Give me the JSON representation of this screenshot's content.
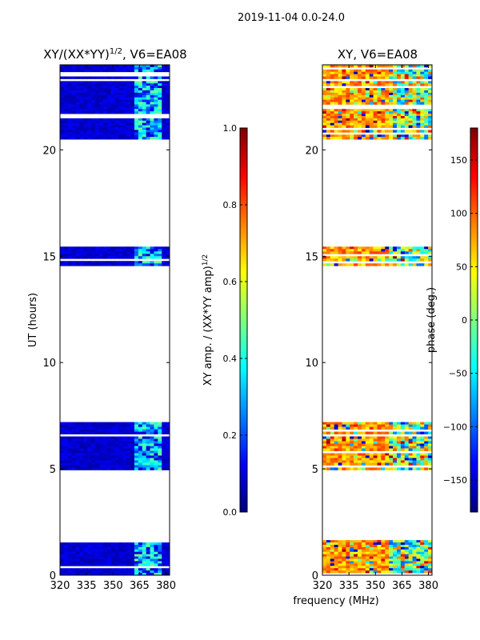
{
  "suptitle": "2019-11-04 0.0-24.0",
  "shared_xlabel": "frequency (MHz)",
  "colors": {
    "jet": [
      "#00007f",
      "#0000ff",
      "#007fff",
      "#00ffff",
      "#7fff7f",
      "#ffff00",
      "#ff7f00",
      "#ff0000",
      "#7f0000"
    ],
    "axis": "#000000",
    "background": "#ffffff"
  },
  "chart_data": [
    {
      "type": "heatmap",
      "title": "XY/(XX*YY)",
      "title_superscript": "1/2",
      "title_suffix": ", V6=EA08",
      "xlabel": "",
      "ylabel": "UT (hours)",
      "xlim": [
        320,
        382
      ],
      "ylim": [
        0,
        24
      ],
      "xticks": [
        320,
        335,
        350,
        365,
        380
      ],
      "yticks": [
        0,
        5,
        10,
        15,
        20
      ],
      "observed_time_blocks_hours": [
        [
          0,
          1.65
        ],
        [
          4.95,
          7.2
        ],
        [
          14.55,
          15.45
        ],
        [
          20.5,
          24
        ]
      ],
      "colorbar": {
        "label": "XY amp. / (XX*YY amp)",
        "label_superscript": "1/2",
        "range": [
          0.0,
          1.0
        ],
        "ticks": [
          "0.0",
          "0.2",
          "0.4",
          "0.6",
          "0.8",
          "1.0"
        ]
      }
    },
    {
      "type": "heatmap",
      "title": "XY, V6=EA08",
      "xlabel": "",
      "ylabel": "",
      "xlim": [
        320,
        382
      ],
      "ylim": [
        0,
        24
      ],
      "xticks": [
        320,
        335,
        350,
        365,
        380
      ],
      "yticks": [
        0,
        5,
        10,
        15,
        20
      ],
      "observed_time_blocks_hours": [
        [
          0,
          1.65
        ],
        [
          4.95,
          7.2
        ],
        [
          14.55,
          15.45
        ],
        [
          20.5,
          24
        ]
      ],
      "colorbar": {
        "label": "phase (deg.)",
        "range": [
          -180,
          180
        ],
        "ticks": [
          "−150",
          "−100",
          "−50",
          "0",
          "50",
          "100",
          "150"
        ]
      }
    }
  ]
}
